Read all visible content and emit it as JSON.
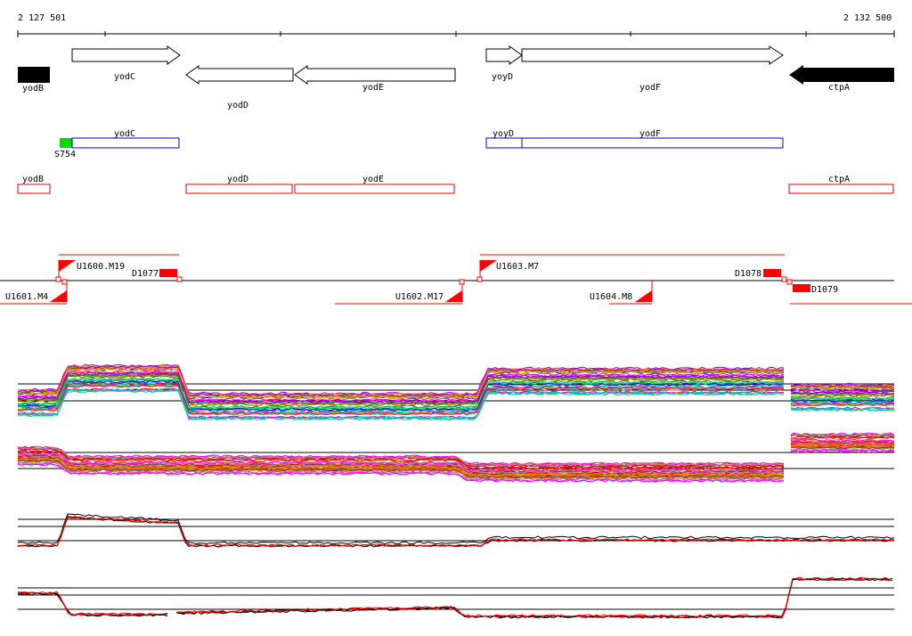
{
  "ruler": {
    "start_label": "2 127 501",
    "end_label": "2 132 500"
  },
  "genes_strand": [
    {
      "id": "yodB",
      "label": "yodB",
      "dir": "left",
      "filled": true
    },
    {
      "id": "yodC",
      "label": "yodC",
      "dir": "right",
      "filled": false
    },
    {
      "id": "yodD",
      "label": "yodD",
      "dir": "left",
      "filled": false
    },
    {
      "id": "yodE",
      "label": "yodE",
      "dir": "left",
      "filled": false
    },
    {
      "id": "yoyD",
      "label": "yoyD",
      "dir": "right",
      "filled": false
    },
    {
      "id": "yodF",
      "label": "yodF",
      "dir": "right",
      "filled": false
    },
    {
      "id": "ctpA",
      "label": "ctpA",
      "dir": "left",
      "filled": true
    }
  ],
  "blue_track": {
    "sigma_label": "S754",
    "sigma_color": "#00dd00",
    "boxes": [
      {
        "label": "yodC"
      },
      {
        "label": "yoyD"
      },
      {
        "label": "yodF"
      }
    ],
    "color": "#0000cc"
  },
  "red_track": {
    "boxes": [
      {
        "label": "yodB"
      },
      {
        "label": "yodD"
      },
      {
        "label": "yodE"
      },
      {
        "label": "ctpA"
      }
    ],
    "color": "#dd0000"
  },
  "regulatory": {
    "upstream": [
      "U1600.M19",
      "U1603.M7",
      "U1601.M4",
      "U1602.M17",
      "U1604.M8"
    ],
    "downstream": [
      "D1077",
      "D1078",
      "D1079"
    ]
  },
  "colors": {
    "accent": "#ff0000",
    "line": "#000000"
  },
  "expression_panels": [
    {
      "id": "panel-1",
      "description": "many-condition profile"
    },
    {
      "id": "panel-2",
      "description": "many-condition profile"
    },
    {
      "id": "panel-3",
      "description": "two-condition profile"
    },
    {
      "id": "panel-4",
      "description": "two-condition profile"
    }
  ]
}
